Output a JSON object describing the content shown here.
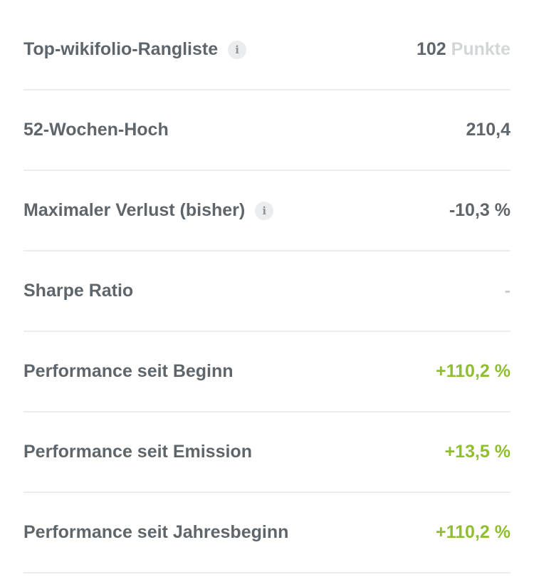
{
  "colors": {
    "text": "#5f666b",
    "positive": "#8fbf2f",
    "muted": "#d2d6d8",
    "divider": "#e9eded"
  },
  "rows": [
    {
      "label": "Top-wikifolio-Rangliste",
      "info": true,
      "value": "102",
      "unit": "Punkte",
      "tone": "normal"
    },
    {
      "label": "52-Wochen-Hoch",
      "info": false,
      "value": "210,4",
      "tone": "normal"
    },
    {
      "label": "Maximaler Verlust (bisher)",
      "info": true,
      "value": "-10,3 %",
      "tone": "normal"
    },
    {
      "label": "Sharpe Ratio",
      "info": false,
      "value": "-",
      "tone": "dash"
    },
    {
      "label": "Performance seit Beginn",
      "info": false,
      "value": "+110,2 %",
      "tone": "pos"
    },
    {
      "label": "Performance seit Emission",
      "info": false,
      "value": "+13,5 %",
      "tone": "pos"
    },
    {
      "label": "Performance seit Jahresbeginn",
      "info": false,
      "value": "+110,2 %",
      "tone": "pos"
    }
  ]
}
